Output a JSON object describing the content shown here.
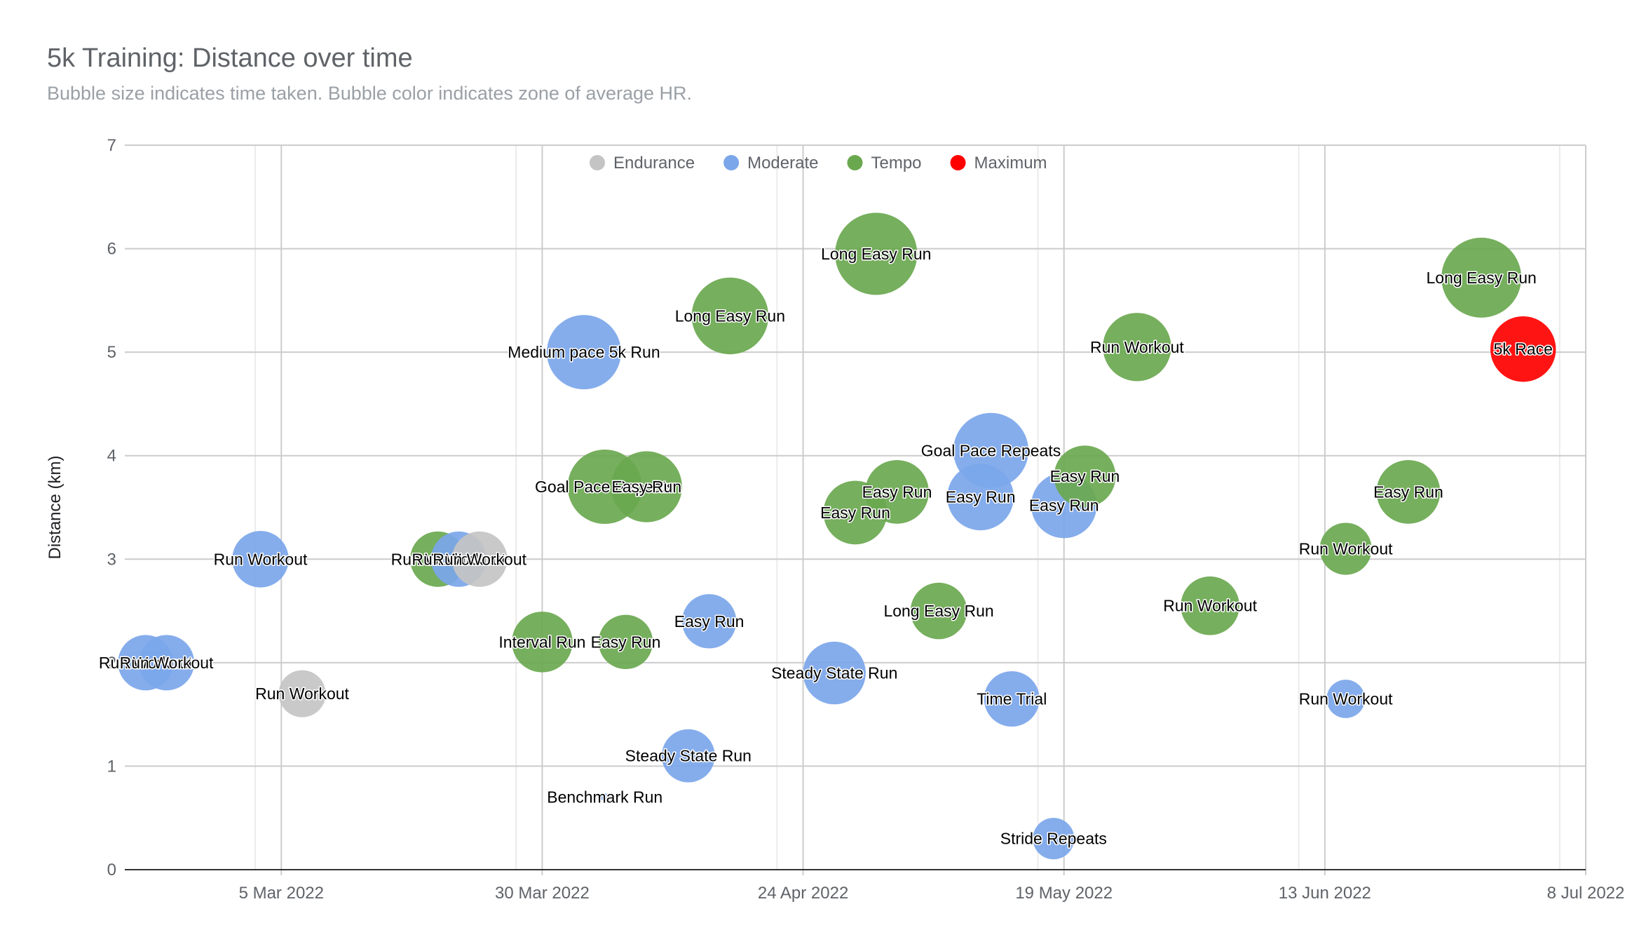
{
  "title": "5k Training: Distance over time",
  "subtitle": "Bubble size indicates time taken. Bubble color indicates zone of average HR.",
  "chart_data": {
    "type": "bubble",
    "title": "5k Training: Distance over time",
    "subtitle": "Bubble size indicates time taken. Bubble color indicates zone of average HR.",
    "xlabel": "",
    "ylabel": "Distance (km)",
    "xlim": [
      "2022-02-18",
      "2022-07-08"
    ],
    "ylim": [
      0,
      7
    ],
    "x_ticks": [
      "5 Mar 2022",
      "30 Mar 2022",
      "24 Apr 2022",
      "19 May 2022",
      "13 Jun 2022",
      "8 Jul 2022"
    ],
    "y_ticks": [
      "0",
      "1",
      "2",
      "3",
      "4",
      "5",
      "6",
      "7"
    ],
    "grid": true,
    "legend_position": "top",
    "size_meaning": "time taken",
    "legend": [
      {
        "name": "Endurance",
        "color": "#c4c4c4"
      },
      {
        "name": "Moderate",
        "color": "#7ba6ea"
      },
      {
        "name": "Tempo",
        "color": "#6aa84f"
      },
      {
        "name": "Maximum",
        "color": "#ff0000"
      }
    ],
    "points": [
      {
        "label": "Run Workout",
        "date": "2022-02-20",
        "distance": 2.0,
        "size": 25,
        "zone": "Moderate"
      },
      {
        "label": "Run Workout",
        "date": "2022-02-22",
        "distance": 2.0,
        "size": 25,
        "zone": "Moderate"
      },
      {
        "label": "Run Workout",
        "date": "2022-03-03",
        "distance": 3.0,
        "size": 26,
        "zone": "Moderate"
      },
      {
        "label": "Run Workout",
        "date": "2022-03-07",
        "distance": 1.7,
        "size": 18,
        "zone": "Endurance"
      },
      {
        "label": "Run Workout",
        "date": "2022-03-20",
        "distance": 3.0,
        "size": 25,
        "zone": "Tempo"
      },
      {
        "label": "Run Workout",
        "date": "2022-03-22",
        "distance": 3.0,
        "size": 25,
        "zone": "Moderate"
      },
      {
        "label": "Run Workout",
        "date": "2022-03-24",
        "distance": 3.0,
        "size": 25,
        "zone": "Endurance"
      },
      {
        "label": "Interval Run",
        "date": "2022-03-30",
        "distance": 2.2,
        "size": 30,
        "zone": "Tempo"
      },
      {
        "label": "Medium pace 5k Run",
        "date": "2022-04-03",
        "distance": 5.0,
        "size": 45,
        "zone": "Moderate"
      },
      {
        "label": "Benchmark Run",
        "date": "2022-04-05",
        "distance": 0.7,
        "size": 0.5,
        "zone": "Moderate"
      },
      {
        "label": "Goal Pace Repeats",
        "date": "2022-04-05",
        "distance": 3.7,
        "size": 45,
        "zone": "Tempo"
      },
      {
        "label": "Easy Run",
        "date": "2022-04-07",
        "distance": 2.2,
        "size": 24,
        "zone": "Tempo"
      },
      {
        "label": "Easy Run",
        "date": "2022-04-09",
        "distance": 3.7,
        "size": 41,
        "zone": "Tempo"
      },
      {
        "label": "Steady State Run",
        "date": "2022-04-13",
        "distance": 1.1,
        "size": 23,
        "zone": "Moderate"
      },
      {
        "label": "Easy Run",
        "date": "2022-04-15",
        "distance": 2.4,
        "size": 24,
        "zone": "Moderate"
      },
      {
        "label": "Long Easy Run",
        "date": "2022-04-17",
        "distance": 5.35,
        "size": 48,
        "zone": "Tempo"
      },
      {
        "label": "Steady State Run",
        "date": "2022-04-27",
        "distance": 1.9,
        "size": 32,
        "zone": "Moderate"
      },
      {
        "label": "Easy Run",
        "date": "2022-04-29",
        "distance": 3.45,
        "size": 33,
        "zone": "Tempo"
      },
      {
        "label": "Long Easy Run",
        "date": "2022-05-01",
        "distance": 5.95,
        "size": 55,
        "zone": "Tempo"
      },
      {
        "label": "Easy Run",
        "date": "2022-05-03",
        "distance": 3.65,
        "size": 33,
        "zone": "Tempo"
      },
      {
        "label": "Long Easy Run",
        "date": "2022-05-07",
        "distance": 2.5,
        "size": 26,
        "zone": "Tempo"
      },
      {
        "label": "Easy Run",
        "date": "2022-05-11",
        "distance": 3.6,
        "size": 36,
        "zone": "Moderate"
      },
      {
        "label": "Goal Pace Repeats",
        "date": "2022-05-12",
        "distance": 4.05,
        "size": 46,
        "zone": "Moderate"
      },
      {
        "label": "Time Trial",
        "date": "2022-05-14",
        "distance": 1.65,
        "size": 25,
        "zone": "Moderate"
      },
      {
        "label": "Stride Repeats",
        "date": "2022-05-18",
        "distance": 0.3,
        "size": 14,
        "zone": "Moderate"
      },
      {
        "label": "Easy Run",
        "date": "2022-05-19",
        "distance": 3.52,
        "size": 35,
        "zone": "Moderate"
      },
      {
        "label": "Easy Run",
        "date": "2022-05-21",
        "distance": 3.8,
        "size": 31,
        "zone": "Tempo"
      },
      {
        "label": "Run Workout",
        "date": "2022-05-26",
        "distance": 5.05,
        "size": 38,
        "zone": "Tempo"
      },
      {
        "label": "Run Workout",
        "date": "2022-06-02",
        "distance": 2.55,
        "size": 28,
        "zone": "Tempo"
      },
      {
        "label": "Run Workout",
        "date": "2022-06-15",
        "distance": 1.65,
        "size": 12,
        "zone": "Moderate"
      },
      {
        "label": "Run Workout",
        "date": "2022-06-15",
        "distance": 3.1,
        "size": 22,
        "zone": "Tempo"
      },
      {
        "label": "Easy Run",
        "date": "2022-06-21",
        "distance": 3.65,
        "size": 33,
        "zone": "Tempo"
      },
      {
        "label": "Long Easy Run",
        "date": "2022-06-28",
        "distance": 5.72,
        "size": 52,
        "zone": "Tempo"
      },
      {
        "label": "5k Race",
        "date": "2022-07-02",
        "distance": 5.03,
        "size": 35,
        "zone": "Maximum"
      }
    ]
  }
}
